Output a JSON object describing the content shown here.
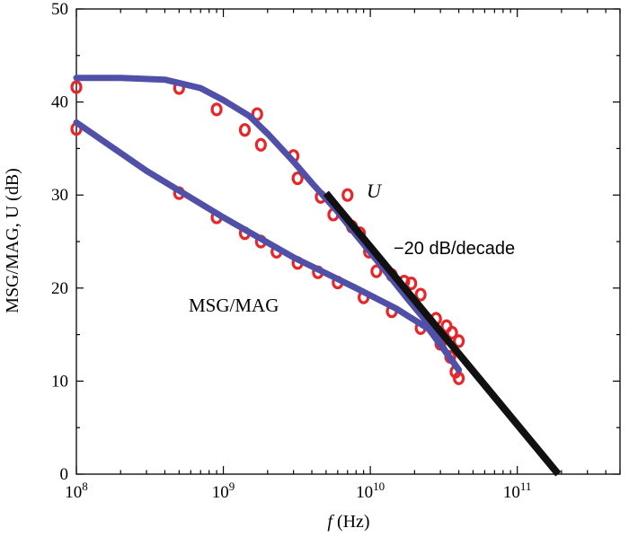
{
  "chart_data": {
    "type": "line",
    "xlabel_italic": "f",
    "xlabel_rest": " (Hz)",
    "ylabel": "MSG/MAG, U (dB)",
    "xscale": "log",
    "xlim": [
      100000000,
      500000000000
    ],
    "ylim": [
      0,
      50
    ],
    "yticks": [
      "0",
      "10",
      "20",
      "30",
      "40",
      "50"
    ],
    "xticks": [
      {
        "base": "10",
        "exp": "8",
        "value": 100000000
      },
      {
        "base": "10",
        "exp": "9",
        "value": 1000000000
      },
      {
        "base": "10",
        "exp": "10",
        "value": 10000000000
      },
      {
        "base": "10",
        "exp": "11",
        "value": 100000000000
      }
    ],
    "annotations": {
      "u_label": "U",
      "slope_label": "−20 dB/decade",
      "msg_label": "MSG/MAG"
    },
    "series": [
      {
        "role": "U fit",
        "color": "#5050a8",
        "points": [
          [
            100000000,
            42.6
          ],
          [
            200000000,
            42.6
          ],
          [
            400000000,
            42.4
          ],
          [
            700000000,
            41.5
          ],
          [
            1000000000,
            40.2
          ],
          [
            1500000000,
            38.5
          ],
          [
            2000000000,
            36.6
          ],
          [
            3000000000,
            33.6
          ],
          [
            4000000000,
            31.3
          ],
          [
            6000000000,
            28.2
          ],
          [
            8000000000,
            25.7
          ],
          [
            12000000000,
            22.3
          ],
          [
            18000000000,
            18.8
          ],
          [
            25000000000,
            16.1
          ],
          [
            32000000000,
            13.4
          ],
          [
            40000000000,
            11.2
          ]
        ]
      },
      {
        "role": "MSG/MAG fit",
        "color": "#5050a8",
        "points": [
          [
            100000000,
            37.8
          ],
          [
            300000000,
            32.6
          ],
          [
            1000000000,
            27.6
          ],
          [
            3000000000,
            23.3
          ],
          [
            8000000000,
            20.0
          ],
          [
            15000000000,
            17.8
          ],
          [
            25000000000,
            15.6
          ],
          [
            40000000000,
            11.2
          ]
        ]
      },
      {
        "role": "-20 dB/decade",
        "color": "#111111",
        "points": [
          [
            5000000000,
            30.2
          ],
          [
            190000000000,
            0
          ]
        ]
      }
    ],
    "u_measured": [
      [
        100000000,
        41.6
      ],
      [
        500000000,
        41.5
      ],
      [
        900000000,
        39.2
      ],
      [
        1400000000,
        37.0
      ],
      [
        1700000000,
        38.7
      ],
      [
        1800000000,
        35.4
      ],
      [
        3000000000,
        34.2
      ],
      [
        3200000000,
        31.8
      ],
      [
        4600000000,
        29.8
      ],
      [
        5600000000,
        27.9
      ],
      [
        7000000000,
        30.0
      ],
      [
        7500000000,
        26.6
      ],
      [
        8500000000,
        25.9
      ],
      [
        9800000000,
        23.9
      ],
      [
        11000000000,
        21.8
      ],
      [
        14000000000,
        21.4
      ],
      [
        17000000000,
        20.7
      ],
      [
        19000000000,
        20.5
      ],
      [
        22000000000,
        19.3
      ],
      [
        28000000000,
        16.7
      ],
      [
        33000000000,
        15.9
      ],
      [
        36000000000,
        15.2
      ],
      [
        40000000000,
        14.3
      ]
    ],
    "msg_measured": [
      [
        100000000,
        37.1
      ],
      [
        500000000,
        30.2
      ],
      [
        900000000,
        27.6
      ],
      [
        1400000000,
        25.9
      ],
      [
        1800000000,
        25.0
      ],
      [
        2300000000,
        23.9
      ],
      [
        3200000000,
        22.7
      ],
      [
        4400000000,
        21.7
      ],
      [
        6000000000,
        20.6
      ],
      [
        9000000000,
        19.0
      ],
      [
        14000000000,
        17.5
      ],
      [
        22000000000,
        15.7
      ],
      [
        30000000000,
        14.0
      ],
      [
        35000000000,
        12.6
      ],
      [
        38000000000,
        11.0
      ],
      [
        40000000000,
        10.3
      ]
    ],
    "colors": {
      "measured": "#e8262a",
      "fit": "#5050a8",
      "asymptote": "#111111"
    }
  }
}
